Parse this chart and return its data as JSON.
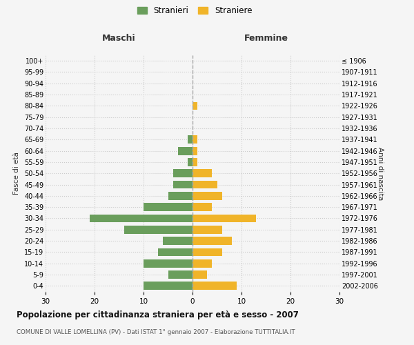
{
  "age_groups": [
    "0-4",
    "5-9",
    "10-14",
    "15-19",
    "20-24",
    "25-29",
    "30-34",
    "35-39",
    "40-44",
    "45-49",
    "50-54",
    "55-59",
    "60-64",
    "65-69",
    "70-74",
    "75-79",
    "80-84",
    "85-89",
    "90-94",
    "95-99",
    "100+"
  ],
  "birth_years": [
    "2002-2006",
    "1997-2001",
    "1992-1996",
    "1987-1991",
    "1982-1986",
    "1977-1981",
    "1972-1976",
    "1967-1971",
    "1962-1966",
    "1957-1961",
    "1952-1956",
    "1947-1951",
    "1942-1946",
    "1937-1941",
    "1932-1936",
    "1927-1931",
    "1922-1926",
    "1917-1921",
    "1912-1916",
    "1907-1911",
    "≤ 1906"
  ],
  "maschi": [
    10,
    5,
    10,
    7,
    6,
    14,
    21,
    10,
    5,
    4,
    4,
    1,
    3,
    1,
    0,
    0,
    0,
    0,
    0,
    0,
    0
  ],
  "femmine": [
    9,
    3,
    4,
    6,
    8,
    6,
    13,
    4,
    6,
    5,
    4,
    1,
    1,
    1,
    0,
    0,
    1,
    0,
    0,
    0,
    0
  ],
  "color_maschi": "#6a9e5c",
  "color_femmine": "#f0b429",
  "title_main": "Popolazione per cittadinanza straniera per età e sesso - 2007",
  "title_sub": "COMUNE DI VALLE LOMELLINA (PV) - Dati ISTAT 1° gennaio 2007 - Elaborazione TUTTITALIA.IT",
  "xlabel_left": "Maschi",
  "xlabel_right": "Femmine",
  "ylabel_left": "Fasce di età",
  "ylabel_right": "Anni di nascita",
  "legend_maschi": "Stranieri",
  "legend_femmine": "Straniere",
  "xlim": 30,
  "background_color": "#f5f5f5",
  "grid_color": "#cccccc"
}
